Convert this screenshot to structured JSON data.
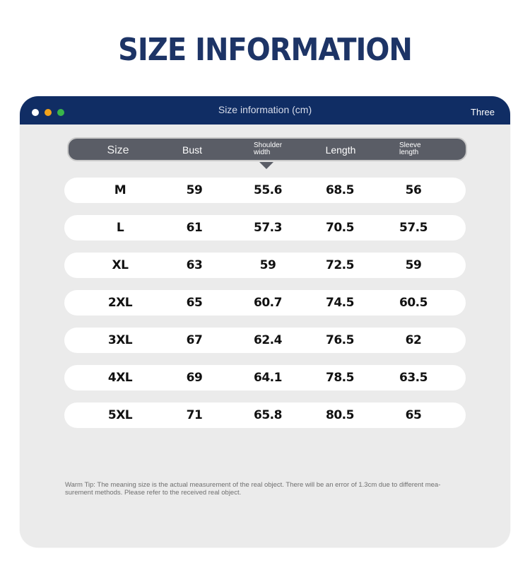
{
  "heading": "SIZE INFORMATION",
  "window": {
    "title": "Size information (cm)",
    "right_label": "Three",
    "dot_colors": [
      "#ffffff",
      "#f2a31b",
      "#39b54a"
    ],
    "bar_color": "#102d64"
  },
  "columns": {
    "size": "Size",
    "bust": "Bust",
    "shoulder_line1": "Shoulder",
    "shoulder_line2": "width",
    "length": "Length",
    "sleeve_line1": "Sleeve",
    "sleeve_line2": "length"
  },
  "rows": [
    {
      "size": "M",
      "bust": "59",
      "shoulder": "55.6",
      "length": "68.5",
      "sleeve": "56"
    },
    {
      "size": "L",
      "bust": "61",
      "shoulder": "57.3",
      "length": "70.5",
      "sleeve": "57.5"
    },
    {
      "size": "XL",
      "bust": "63",
      "shoulder": "59",
      "length": "72.5",
      "sleeve": "59"
    },
    {
      "size": "2XL",
      "bust": "65",
      "shoulder": "60.7",
      "length": "74.5",
      "sleeve": "60.5"
    },
    {
      "size": "3XL",
      "bust": "67",
      "shoulder": "62.4",
      "length": "76.5",
      "sleeve": "62"
    },
    {
      "size": "4XL",
      "bust": "69",
      "shoulder": "64.1",
      "length": "78.5",
      "sleeve": "63.5"
    },
    {
      "size": "5XL",
      "bust": "71",
      "shoulder": "65.8",
      "length": "80.5",
      "sleeve": "65"
    }
  ],
  "tip_line1": "Warm Tip: The meaning size is the actual measurement of the real object. There will be an error of 1.3cm due to different mea-",
  "tip_line2": "surement methods. Please refer to the received real object."
}
